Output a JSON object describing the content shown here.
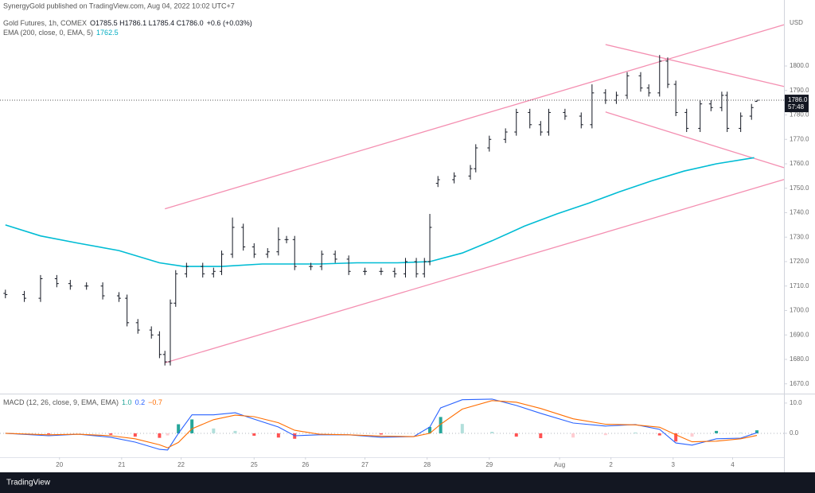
{
  "header": "SynergyGold published on TradingView.com, Aug 04, 2022 10:02 UTC+7",
  "footer": "TradingView",
  "chart_data": [
    {
      "type": "ohlc",
      "symbol": "Gold Futures, 1h, COMEX",
      "ohlc_label": "O1785.5 H1786.1 L1785.4 C1786.0",
      "change_label": "+0.6 (+0.03%)",
      "currency": "USD",
      "color": "#131722",
      "xlim": [
        -2,
        288
      ],
      "ylim": [
        1666,
        1827
      ],
      "yticks": [
        {
          "value": 1670,
          "label": "1670.0"
        },
        {
          "value": 1680,
          "label": "1680.0"
        },
        {
          "value": 1690,
          "label": "1690.0"
        },
        {
          "value": 1700,
          "label": "1700.0"
        },
        {
          "value": 1710,
          "label": "1710.0"
        },
        {
          "value": 1720,
          "label": "1720.0"
        },
        {
          "value": 1730,
          "label": "1730.0"
        },
        {
          "value": 1740,
          "label": "1740.0"
        },
        {
          "value": 1750,
          "label": "1750.0"
        },
        {
          "value": 1760,
          "label": "1760.0"
        },
        {
          "value": 1770,
          "label": "1770.0"
        },
        {
          "value": 1780,
          "label": "1780.0"
        },
        {
          "value": 1790,
          "label": "1790.0"
        },
        {
          "value": 1800,
          "label": "1800.0"
        }
      ],
      "xticks": [
        {
          "value": 20,
          "label": "20"
        },
        {
          "value": 43,
          "label": "21"
        },
        {
          "value": 65,
          "label": "22"
        },
        {
          "value": 92,
          "label": "25"
        },
        {
          "value": 111,
          "label": "26"
        },
        {
          "value": 133,
          "label": "27"
        },
        {
          "value": 156,
          "label": "28"
        },
        {
          "value": 179,
          "label": "29"
        },
        {
          "value": 205,
          "label": "Aug"
        },
        {
          "value": 224,
          "label": "2"
        },
        {
          "value": 247,
          "label": "3"
        },
        {
          "value": 269,
          "label": "4"
        }
      ],
      "x": [
        0,
        7,
        13,
        19,
        24,
        30,
        36,
        42,
        45,
        49,
        54,
        57,
        59,
        61,
        63,
        67,
        73,
        77,
        80,
        84,
        88,
        92,
        97,
        101,
        104,
        107,
        113,
        117,
        122,
        127,
        133,
        139,
        144,
        148,
        152,
        155,
        157,
        160,
        166,
        172,
        174,
        179,
        185,
        189,
        194,
        198,
        201,
        207,
        213,
        217,
        222,
        226,
        230,
        235,
        238,
        242,
        245,
        248,
        252,
        257,
        261,
        265,
        267,
        272,
        276,
        278
      ],
      "open": [
        1707,
        1706.5,
        1705,
        1713,
        1711,
        1710,
        1710,
        1706,
        1705,
        1695,
        1692,
        1690,
        1682,
        1679,
        1703,
        1715,
        1718,
        1715,
        1716,
        1723,
        1734,
        1726,
        1723,
        1724,
        1729,
        1729,
        1718,
        1718,
        1723,
        1721,
        1716,
        1716,
        1716,
        1715,
        1720,
        1715,
        1720,
        1752,
        1753.5,
        1755,
        1758,
        1766.5,
        1770,
        1773,
        1781,
        1776,
        1773,
        1781,
        1779.5,
        1776,
        1789,
        1786,
        1788,
        1796,
        1791,
        1789,
        1802,
        1792.5,
        1781,
        1774.5,
        1784.5,
        1783,
        1788,
        1774.5,
        1779.5,
        1785.5
      ],
      "high": [
        1708.5,
        1708,
        1714.5,
        1714.5,
        1712.5,
        1711.5,
        1711.5,
        1707.5,
        1706.5,
        1696.5,
        1693.5,
        1691.5,
        1683.5,
        1704.5,
        1716.5,
        1719.5,
        1719.5,
        1717.5,
        1724.5,
        1738,
        1735.5,
        1727.5,
        1725.5,
        1734,
        1730.5,
        1730.5,
        1719.5,
        1724.5,
        1724.5,
        1722.5,
        1717.5,
        1717.5,
        1717.5,
        1721.5,
        1721.5,
        1721.5,
        1739.5,
        1755,
        1756.5,
        1759.5,
        1768,
        1771.5,
        1774.5,
        1782.5,
        1782.5,
        1777.5,
        1782.5,
        1782.5,
        1781,
        1792.5,
        1790.5,
        1789.5,
        1797.5,
        1797.5,
        1792.5,
        1804.5,
        1803.5,
        1794,
        1782.5,
        1786,
        1786,
        1789.5,
        1789.5,
        1781,
        1784.5,
        1786.1
      ],
      "low": [
        1705,
        1703.5,
        1703.5,
        1709.5,
        1708.5,
        1708.5,
        1704.5,
        1703.5,
        1693.5,
        1690.5,
        1688.5,
        1680.5,
        1677.5,
        1677.5,
        1701.5,
        1713.5,
        1713.5,
        1713.5,
        1714.5,
        1721.5,
        1724.5,
        1721.5,
        1721.5,
        1722.5,
        1727.5,
        1716.5,
        1716.5,
        1716.5,
        1719.5,
        1714.5,
        1714.5,
        1714.5,
        1713.5,
        1713.5,
        1713.5,
        1713.5,
        1718.5,
        1750.5,
        1752,
        1753.5,
        1756.5,
        1765,
        1768.5,
        1771.5,
        1774.5,
        1771.5,
        1771.5,
        1778,
        1774.5,
        1774.5,
        1784.5,
        1784.5,
        1786.5,
        1789.5,
        1787.5,
        1787.5,
        1791,
        1779.5,
        1773,
        1773,
        1781.5,
        1781.5,
        1773,
        1773,
        1778,
        1785.4
      ],
      "close": [
        1706.5,
        1705,
        1713,
        1711,
        1710,
        1710,
        1706,
        1705,
        1695,
        1692,
        1690,
        1682,
        1679,
        1703,
        1715,
        1718,
        1715,
        1716,
        1723,
        1734,
        1726,
        1723,
        1724,
        1729,
        1729,
        1718,
        1718,
        1723,
        1721,
        1716,
        1716,
        1716,
        1715,
        1720,
        1715,
        1720,
        1734,
        1753.5,
        1755,
        1758,
        1766.5,
        1770,
        1773,
        1781,
        1776,
        1773,
        1781,
        1779.5,
        1776,
        1789,
        1786,
        1788,
        1796,
        1791,
        1789,
        1802,
        1792.5,
        1781,
        1774.5,
        1784.5,
        1783,
        1788,
        1774.5,
        1779.5,
        1783,
        1786
      ],
      "ema": {
        "name": "EMA (200, close, 0, EMA, 5)",
        "value_label": "1762.5",
        "color": "#00bcd4",
        "x": [
          0,
          13,
          27,
          42,
          57,
          66,
          80,
          95,
          116,
          130,
          145,
          157,
          169,
          180,
          192,
          204,
          216,
          227,
          239,
          251,
          263,
          277
        ],
        "values": [
          1735,
          1730.5,
          1727.5,
          1724.5,
          1719.5,
          1718,
          1718,
          1719,
          1719,
          1719.5,
          1719.5,
          1720,
          1723.5,
          1728.5,
          1734.5,
          1739.5,
          1744,
          1748.5,
          1753,
          1757,
          1760,
          1762.5
        ]
      },
      "trendline_color": "#f48fb1",
      "trendlines": [
        {
          "x": [
            59,
            288
          ],
          "values": [
            1678.6,
            1753.6
          ]
        },
        {
          "x": [
            59,
            288
          ],
          "values": [
            1741.6,
            1816.9
          ]
        },
        {
          "x": [
            222,
            288
          ],
          "values": [
            1808.8,
            1791.6
          ]
        },
        {
          "x": [
            222,
            288
          ],
          "values": [
            1781.2,
            1758.4
          ]
        }
      ],
      "last_price": {
        "value": 1786,
        "label": "1786.0",
        "countdown": "57:48"
      }
    },
    {
      "type": "macd",
      "name": "MACD (12, 26, close, 9, EMA, EMA)",
      "xlim": [
        -2,
        288
      ],
      "ylim": [
        -7.9,
        12.6
      ],
      "yticks": [
        {
          "value": 10,
          "label": "10.0"
        },
        {
          "value": 0,
          "label": "0.0"
        }
      ],
      "x": [
        0,
        16,
        27,
        39,
        48,
        57,
        60,
        64,
        69,
        77,
        85,
        92,
        101,
        107,
        116,
        127,
        139,
        151,
        157,
        161,
        169,
        180,
        189,
        198,
        210,
        222,
        233,
        242,
        248,
        254,
        263,
        272,
        278
      ],
      "histogram": {
        "value_label": "1.0",
        "colors": [
          "#26a69a",
          "#b2dfdb",
          "#ff5252",
          "#ffcdd2"
        ],
        "values": [
          0,
          -0.3,
          0,
          -0.5,
          -1.1,
          -1.5,
          -0.7,
          3,
          4.6,
          1.6,
          0.8,
          -0.8,
          -1.4,
          -1.8,
          -0.2,
          0,
          -0.4,
          0,
          2.1,
          5.4,
          3.1,
          0.5,
          -1.1,
          -1.6,
          -1.4,
          -0.6,
          0.1,
          -0.7,
          -2.7,
          -1.1,
          0.8,
          0.2,
          1
        ]
      },
      "macd": {
        "value_label": "0.2",
        "color": "#2962ff",
        "values": [
          0,
          -0.8,
          -0.3,
          -1.3,
          -2.9,
          -5.3,
          -5.5,
          0,
          6.1,
          6.1,
          6.8,
          4.7,
          2.1,
          -0.8,
          -0.5,
          -0.5,
          -1.3,
          -1.1,
          2.1,
          8.4,
          11.1,
          11.3,
          9.2,
          6.6,
          3.4,
          2.4,
          2.9,
          1.3,
          -3.2,
          -3.9,
          -1.8,
          -1.6,
          0.2
        ]
      },
      "signal": {
        "value_label": "−0.7",
        "color": "#ff6d00",
        "values": [
          0,
          -0.5,
          -0.3,
          -0.8,
          -1.8,
          -3.8,
          -4.8,
          -3,
          1.5,
          4.5,
          6,
          5.5,
          3.5,
          1,
          -0.3,
          -0.5,
          -0.9,
          -1.1,
          0,
          3,
          8,
          10.8,
          10.3,
          8.2,
          4.8,
          3,
          2.8,
          2,
          -0.5,
          -2.8,
          -2.6,
          -1.8,
          -0.7
        ]
      }
    }
  ]
}
